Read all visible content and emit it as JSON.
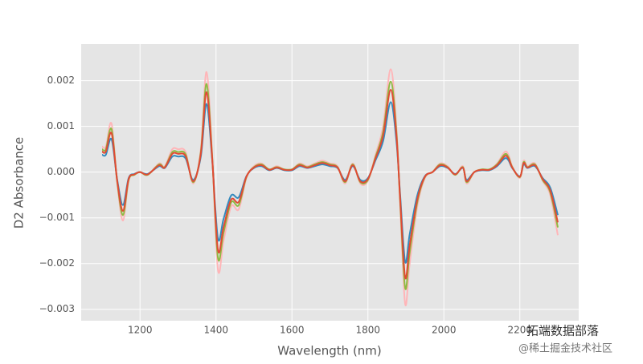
{
  "chart_data": {
    "type": "line",
    "x_label": "Wavelength (nm)",
    "y_label": "D2 Absorbance",
    "annotations": [
      "拓端数据部落",
      "@稀土掘金技术社区"
    ],
    "x": [
      1100,
      1110,
      1125,
      1140,
      1155,
      1170,
      1185,
      1200,
      1220,
      1250,
      1265,
      1285,
      1300,
      1320,
      1340,
      1360,
      1375,
      1390,
      1405,
      1420,
      1440,
      1460,
      1480,
      1500,
      1520,
      1540,
      1560,
      1580,
      1600,
      1620,
      1640,
      1660,
      1680,
      1700,
      1720,
      1740,
      1760,
      1780,
      1800,
      1820,
      1840,
      1860,
      1875,
      1885,
      1898,
      1910,
      1930,
      1950,
      1970,
      1990,
      2010,
      2030,
      2050,
      2060,
      2080,
      2100,
      2120,
      2140,
      2160,
      2170,
      2180,
      2200,
      2210,
      2220,
      2240,
      2260,
      2280,
      2300
    ],
    "series": [
      {
        "color": "#ffb5b8",
        "values": [
          0.00056,
          0.00056,
          0.00106,
          -0.00025,
          -0.00106,
          -0.00019,
          -6e-05,
          0,
          -6e-05,
          0.00019,
          0.00013,
          0.0005,
          0.0005,
          0.00044,
          -0.00025,
          0.0005,
          0.00219,
          0.00038,
          -0.00213,
          -0.0015,
          -0.00075,
          -0.00081,
          -0.00013,
          0.00013,
          0.00019,
          6e-05,
          0.00013,
          6e-05,
          6e-05,
          0.00019,
          0.00013,
          0.00019,
          0.00025,
          0.00019,
          0.00013,
          -0.00025,
          0.00019,
          -0.00025,
          -0.00019,
          0.00038,
          0.001,
          0.00225,
          0.001,
          -0.00075,
          -0.00288,
          -0.002,
          -0.00075,
          -0.00013,
          0,
          0.00019,
          0.00013,
          -6e-05,
          0.00013,
          -0.00025,
          0,
          6e-05,
          6e-05,
          0.00019,
          0.00044,
          0.00038,
          0.00013,
          -0.00013,
          0.00025,
          0.00013,
          0.00019,
          -0.00019,
          -0.0005,
          -0.00138
        ]
      },
      {
        "color": "#348abd",
        "values": [
          0.00038,
          0.00038,
          0.00072,
          -0.00017,
          -0.00072,
          -0.00013,
          -4e-05,
          0,
          -4e-05,
          0.00013,
          9e-05,
          0.00034,
          0.00034,
          0.0003,
          -0.00017,
          0.00034,
          0.00149,
          0.00026,
          -0.00145,
          -0.00102,
          -0.00051,
          -0.00055,
          -9e-05,
          9e-05,
          0.00013,
          4e-05,
          9e-05,
          4e-05,
          4e-05,
          0.00013,
          9e-05,
          0.00013,
          0.00017,
          0.00013,
          9e-05,
          -0.00017,
          0.00013,
          -0.00017,
          -0.00013,
          0.00026,
          0.00068,
          0.00153,
          0.00068,
          -0.00051,
          -0.00196,
          -0.00136,
          -0.00051,
          -9e-05,
          0,
          0.00013,
          9e-05,
          -4e-05,
          9e-05,
          -0.00017,
          0,
          4e-05,
          4e-05,
          0.00013,
          0.0003,
          0.00026,
          9e-05,
          -9e-05,
          0.00017,
          9e-05,
          0.00013,
          -0.00013,
          -0.00034,
          -0.00094
        ]
      },
      {
        "color": "#8eba42",
        "values": [
          0.0005,
          0.0005,
          0.00094,
          -0.00022,
          -0.00094,
          -0.00017,
          -6e-05,
          0,
          -6e-05,
          0.00017,
          0.00011,
          0.00044,
          0.00044,
          0.00039,
          -0.00022,
          0.00044,
          0.00193,
          0.00033,
          -0.00187,
          -0.00132,
          -0.00066,
          -0.00072,
          -0.00011,
          0.00011,
          0.00017,
          6e-05,
          0.00011,
          6e-05,
          6e-05,
          0.00017,
          0.00011,
          0.00017,
          0.00022,
          0.00017,
          0.00011,
          -0.00022,
          0.00017,
          -0.00022,
          -0.00017,
          0.00033,
          0.00088,
          0.00198,
          0.00088,
          -0.00066,
          -0.00253,
          -0.00176,
          -0.00066,
          -0.00011,
          0,
          0.00017,
          0.00011,
          -6e-05,
          0.00011,
          -0.00022,
          0,
          6e-05,
          6e-05,
          0.00017,
          0.00039,
          0.00033,
          0.00011,
          -0.00011,
          0.00022,
          0.00011,
          0.00017,
          -0.00017,
          -0.00044,
          -0.00121
        ]
      },
      {
        "color": "#e24a33",
        "values": [
          0.00045,
          0.00045,
          0.00085,
          -0.0002,
          -0.00085,
          -0.00015,
          -5e-05,
          0,
          -5e-05,
          0.00015,
          0.0001,
          0.0004,
          0.0004,
          0.00035,
          -0.0002,
          0.0004,
          0.00175,
          0.0003,
          -0.0017,
          -0.0012,
          -0.0006,
          -0.00065,
          -0.0001,
          0.0001,
          0.00015,
          5e-05,
          0.0001,
          5e-05,
          5e-05,
          0.00015,
          0.0001,
          0.00015,
          0.0002,
          0.00015,
          0.0001,
          -0.0002,
          0.00015,
          -0.0002,
          -0.00015,
          0.0003,
          0.0008,
          0.0018,
          0.0008,
          -0.0006,
          -0.0023,
          -0.0016,
          -0.0006,
          -0.0001,
          0,
          0.00015,
          0.0001,
          -5e-05,
          0.0001,
          -0.0002,
          0,
          5e-05,
          5e-05,
          0.00015,
          0.00035,
          0.0003,
          0.0001,
          -0.0001,
          0.0002,
          0.0001,
          0.00015,
          -0.00015,
          -0.0004,
          -0.0011
        ]
      }
    ],
    "xlim": [
      1045,
      2355
    ],
    "ylim": [
      -0.00325,
      0.0028
    ],
    "xticks": [
      1200,
      1400,
      1600,
      1800,
      2000,
      2200
    ],
    "yticks": [
      {
        "value": -0.003,
        "label": "−0.003"
      },
      {
        "value": -0.002,
        "label": "−0.002"
      },
      {
        "value": -0.001,
        "label": "−0.001"
      },
      {
        "value": 0,
        "label": "0.000"
      },
      {
        "value": 0.001,
        "label": "0.001"
      },
      {
        "value": 0.002,
        "label": "0.002"
      }
    ],
    "grid": true
  }
}
